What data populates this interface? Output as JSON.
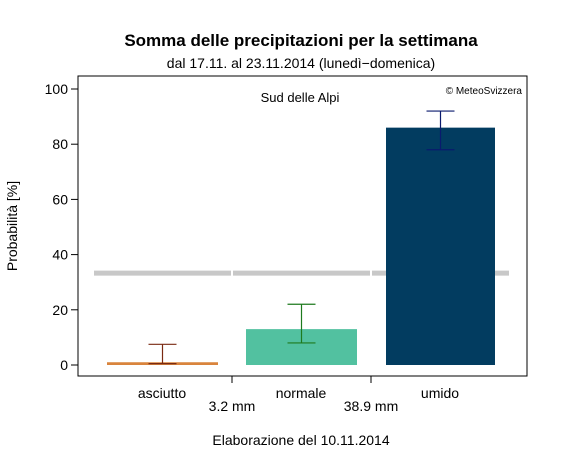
{
  "chart_data": {
    "type": "bar",
    "title": "Somma delle precipitazioni per la settimana",
    "subtitle": "dal 17.11. al 23.11.2014 (lunedì−domenica)",
    "region_label": "Sud delle Alpi",
    "credit": "© MeteoSvizzera",
    "ylabel": "Probabilità [%]",
    "footer": "Elaborazione del 10.11.2014",
    "ylim": [
      0,
      105
    ],
    "y_ticks": [
      0,
      20,
      40,
      60,
      80,
      100
    ],
    "categories": [
      "asciutto",
      "normale",
      "umido"
    ],
    "thresholds": [
      "3.2 mm",
      "38.9 mm"
    ],
    "values": [
      1,
      13,
      86
    ],
    "error_low": [
      0.5,
      8,
      78
    ],
    "error_high": [
      7.5,
      22,
      92
    ],
    "reference_level": 33.3,
    "bar_colors": [
      "#d9843d",
      "#52c1a0",
      "#023c60"
    ],
    "error_colors": [
      "#7a2a12",
      "#1e7a1e",
      "#0a1a6e"
    ],
    "reference_color": "#c8c8c8"
  }
}
